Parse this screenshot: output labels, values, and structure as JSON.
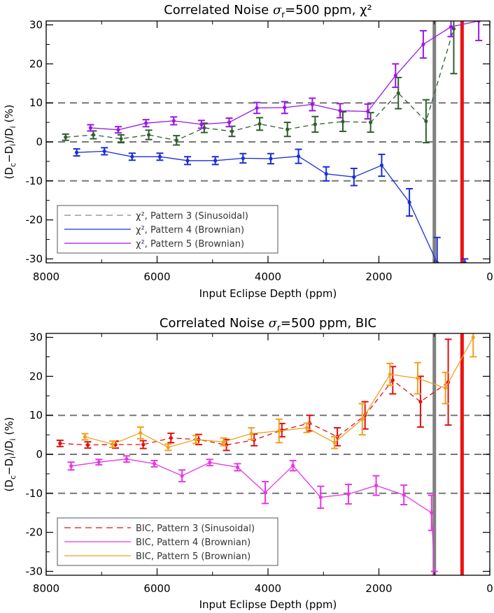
{
  "chart_data": [
    {
      "type": "line",
      "title_prefix": "Correlated Noise ",
      "title_sym": "σ",
      "title_sub": "r",
      "title_suffix": "=500 ppm, χ²",
      "xlabel": "Input Eclipse Depth (ppm)",
      "ylabel": "(D_c−D_i)/D_i (%)",
      "xlim": [
        8000,
        0
      ],
      "ylim": [
        -31,
        31
      ],
      "xticks": [
        8000,
        6000,
        4000,
        2000,
        0
      ],
      "yticks": [
        -30,
        -20,
        -10,
        0,
        10,
        20,
        30
      ],
      "hlines": [
        -10,
        0,
        10
      ],
      "vlines": [
        {
          "x": 1000,
          "color": "#808080"
        },
        {
          "x": 500,
          "color": "#ee1111"
        }
      ],
      "legend_position": "bottom-left",
      "series": [
        {
          "name": "χ², Pattern 3 (Sinusoidal)",
          "color": "#2e5e2e",
          "dash": true,
          "x": [
            7650,
            7150,
            6650,
            6150,
            5650,
            5150,
            4650,
            4150,
            3650,
            3150,
            2650,
            2150,
            1650,
            1150,
            650
          ],
          "y": [
            1.2,
            1.8,
            0.8,
            1.8,
            0.4,
            3.6,
            2.7,
            4.6,
            3.2,
            4.5,
            5.2,
            5.0,
            12.5,
            5.3,
            29
          ],
          "err": [
            0.8,
            1.0,
            1.0,
            1.2,
            1.2,
            1.2,
            1.3,
            1.6,
            1.8,
            2.0,
            2.5,
            2.5,
            4.0,
            5.5,
            11.5
          ]
        },
        {
          "name": "χ², Pattern 4 (Brownian)",
          "color": "#1a2ed6",
          "dash": false,
          "x": [
            7450,
            6950,
            6450,
            5950,
            5450,
            4950,
            4450,
            3950,
            3450,
            2950,
            2450,
            1950,
            1450,
            950,
            450
          ],
          "y": [
            -2.7,
            -2.4,
            -3.8,
            -3.8,
            -4.8,
            -4.8,
            -4.2,
            -4.3,
            -3.7,
            -8.2,
            -9.0,
            -6.0,
            -15.5,
            -31,
            -31
          ],
          "err": [
            0.9,
            0.9,
            0.9,
            0.9,
            1.0,
            1.0,
            1.2,
            1.3,
            1.8,
            1.8,
            2.2,
            2.8,
            3.5,
            6.5,
            1.0
          ]
        },
        {
          "name": "χ², Pattern 5 (Brownian)",
          "color": "#9a16e8",
          "dash": false,
          "x": [
            7200,
            6700,
            6200,
            5700,
            5200,
            4700,
            4200,
            3700,
            3200,
            2700,
            2200,
            1700,
            1200,
            700,
            200
          ],
          "y": [
            3.6,
            3.1,
            4.8,
            5.4,
            4.5,
            5.0,
            8.7,
            8.8,
            9.6,
            8.0,
            7.8,
            17.0,
            25.0,
            29.5,
            31
          ],
          "err": [
            0.8,
            0.8,
            0.9,
            1.0,
            1.0,
            1.1,
            1.4,
            1.5,
            1.6,
            1.8,
            1.9,
            3.0,
            3.5,
            2.5,
            5.0
          ]
        }
      ]
    },
    {
      "type": "line",
      "title_prefix": "Correlated Noise ",
      "title_sym": "σ",
      "title_sub": "r",
      "title_suffix": "=500 ppm, BIC",
      "xlabel": "Input Eclipse Depth (ppm)",
      "ylabel": "(D_c−D_i)/D_i (%)",
      "xlim": [
        8000,
        0
      ],
      "ylim": [
        -31,
        31
      ],
      "xticks": [
        8000,
        6000,
        4000,
        2000,
        0
      ],
      "yticks": [
        -30,
        -20,
        -10,
        0,
        10,
        20,
        30
      ],
      "hlines": [
        -10,
        0,
        10
      ],
      "vlines": [
        {
          "x": 1000,
          "color": "#808080"
        },
        {
          "x": 500,
          "color": "#ee1111"
        }
      ],
      "legend_position": "bottom-left",
      "series": [
        {
          "name": "BIC, Pattern 3 (Sinusoidal)",
          "color": "#e01010",
          "dash": true,
          "x": [
            7750,
            7250,
            6750,
            6250,
            5750,
            5250,
            4750,
            4250,
            3750,
            3250,
            2750,
            2250,
            1750,
            1250,
            750
          ],
          "y": [
            2.8,
            2.4,
            2.5,
            2.5,
            4.2,
            3.8,
            2.4,
            3.7,
            6.2,
            8.0,
            4.5,
            10.0,
            19.0,
            13.5,
            18.5
          ],
          "err": [
            0.8,
            0.8,
            0.9,
            1.0,
            1.2,
            1.3,
            1.4,
            1.5,
            1.7,
            2.0,
            2.3,
            3.5,
            3.5,
            6.5,
            11.0
          ]
        },
        {
          "name": "BIC, Pattern 4 (Brownian)",
          "color": "#e636e6",
          "dash": false,
          "x": [
            7550,
            7050,
            6550,
            6050,
            5550,
            5050,
            4550,
            4050,
            3550,
            3050,
            2550,
            2050,
            1550,
            1050,
            1000
          ],
          "y": [
            -3.0,
            -2.0,
            -1.2,
            -2.4,
            -5.5,
            -2.1,
            -3.3,
            -9.8,
            -2.9,
            -11.0,
            -10.2,
            -8.0,
            -10.4,
            -15.0,
            -31
          ],
          "err": [
            1.0,
            0.7,
            0.8,
            0.8,
            1.5,
            0.8,
            0.9,
            2.8,
            1.3,
            2.8,
            2.5,
            2.5,
            2.5,
            4.5,
            1.0
          ]
        },
        {
          "name": "BIC, Pattern 5 (Brownian)",
          "color": "#f0a020",
          "dash": false,
          "x": [
            7300,
            6800,
            6300,
            5800,
            5300,
            4800,
            4300,
            3800,
            3300,
            2800,
            2300,
            1800,
            1300,
            800,
            300
          ],
          "y": [
            4.5,
            2.6,
            5.5,
            1.8,
            3.8,
            3.2,
            5.3,
            6.0,
            6.8,
            3.0,
            9.0,
            20.5,
            19.5,
            17.0,
            30.0
          ],
          "err": [
            0.8,
            0.8,
            1.5,
            0.8,
            1.0,
            1.0,
            1.5,
            3.0,
            1.2,
            1.5,
            4.0,
            2.8,
            4.0,
            4.0,
            5.0
          ]
        }
      ]
    }
  ]
}
